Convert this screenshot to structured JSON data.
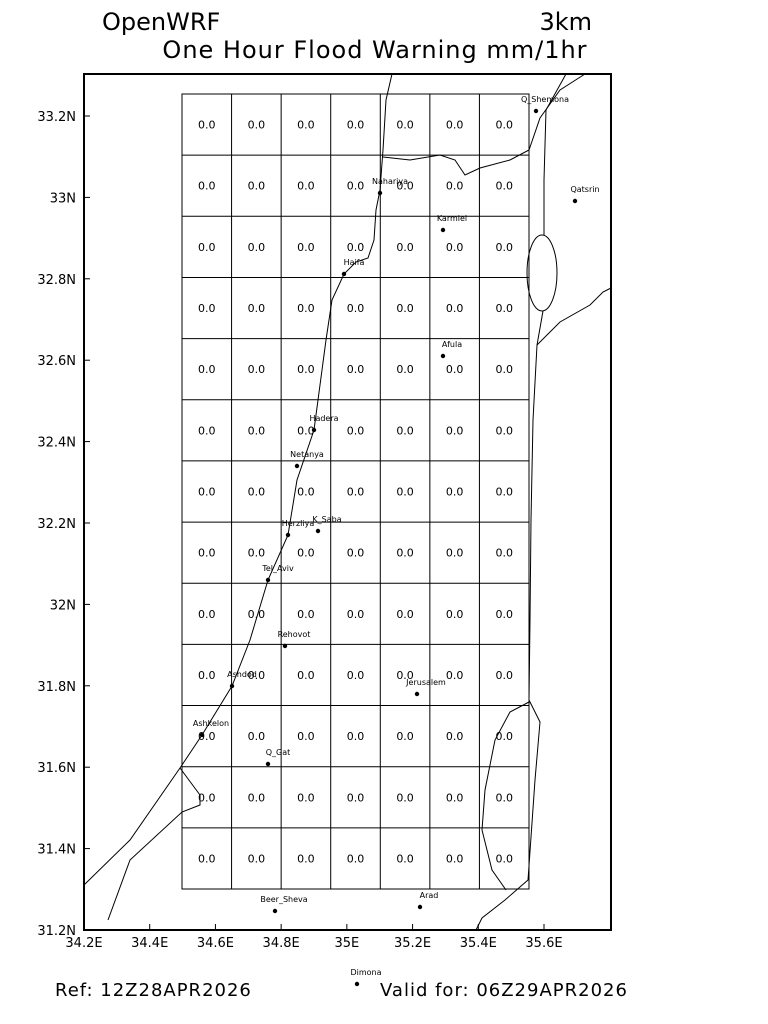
{
  "header": {
    "title_left": "OpenWRF",
    "title_right": "3km",
    "subtitle": "One Hour Flood Warning mm/1hr"
  },
  "axes": {
    "xticks": [
      {
        "value": 34.2,
        "label": "34.2E"
      },
      {
        "value": 34.4,
        "label": "34.4E"
      },
      {
        "value": 34.6,
        "label": "34.6E"
      },
      {
        "value": 34.8,
        "label": "34.8E"
      },
      {
        "value": 35,
        "label": "35E"
      },
      {
        "value": 35.2,
        "label": "35.2E"
      },
      {
        "value": 35.4,
        "label": "35.4E"
      },
      {
        "value": 35.6,
        "label": "35.6E"
      }
    ],
    "yticks": [
      {
        "value": 31.2,
        "label": "31.2N"
      },
      {
        "value": 31.4,
        "label": "31.4N"
      },
      {
        "value": 31.6,
        "label": "31.6N"
      },
      {
        "value": 31.8,
        "label": "31.8N"
      },
      {
        "value": 32,
        "label": "32N"
      },
      {
        "value": 32.2,
        "label": "32.2N"
      },
      {
        "value": 32.4,
        "label": "32.4N"
      },
      {
        "value": 32.6,
        "label": "32.6N"
      },
      {
        "value": 32.8,
        "label": "32.8N"
      },
      {
        "value": 33,
        "label": "33N"
      },
      {
        "value": 33.2,
        "label": "33.2N"
      }
    ]
  },
  "grid": {
    "rows": [
      [
        "0.0",
        "0.0",
        "0.0",
        "0.0",
        "0.0",
        "0.0",
        "0.0"
      ],
      [
        "0.0",
        "0.0",
        "0.0",
        "0.0",
        "0.0",
        "0.0",
        "0.0"
      ],
      [
        "0.0",
        "0.0",
        "0.0",
        "0.0",
        "0.0",
        "0.0",
        "0.0"
      ],
      [
        "0.0",
        "0.0",
        "0.0",
        "0.0",
        "0.0",
        "0.0",
        "0.0"
      ],
      [
        "0.0",
        "0.0",
        "0.0",
        "0.0",
        "0.0",
        "0.0",
        "0.0"
      ],
      [
        "0.0",
        "0.0",
        "0.0",
        "0.0",
        "0.0",
        "0.0",
        "0.0"
      ],
      [
        "0.0",
        "0.0",
        "0.0",
        "0.0",
        "0.0",
        "0.0",
        "0.0"
      ],
      [
        "0.0",
        "0.0",
        "0.0",
        "0.0",
        "0.0",
        "0.0",
        "0.0"
      ],
      [
        "0.0",
        "0.0",
        "0.0",
        "0.0",
        "0.0",
        "0.0",
        "0.0"
      ],
      [
        "0.0",
        "0.0",
        "0.0",
        "0.0",
        "0.0",
        "0.0",
        "0.0"
      ],
      [
        "0.0",
        "0.0",
        "0.0",
        "0.0",
        "0.0",
        "0.0",
        "0.0"
      ],
      [
        "0.0",
        "0.0",
        "0.0",
        "0.0",
        "0.0",
        "0.0",
        "0.0"
      ],
      [
        "0.0",
        "0.0",
        "0.0",
        "0.0",
        "0.0",
        "0.0",
        "0.0"
      ]
    ]
  },
  "cities": [
    "Q_Shemona",
    "Nahariya",
    "Karmiel",
    "Qatsrin",
    "Haifa",
    "Afula",
    "Hadera",
    "Netanya",
    "Herzliya",
    "K_Saba",
    "Tel_Aviv",
    "Rehovot",
    "Ashdod",
    "Jerusalem",
    "Ashkelon",
    "Q_Gat",
    "Beer_Sheva",
    "Arad",
    "Dimona"
  ],
  "footer": {
    "ref": "Ref: 12Z28APR2026",
    "valid": "Valid for: 06Z29APR2026"
  }
}
